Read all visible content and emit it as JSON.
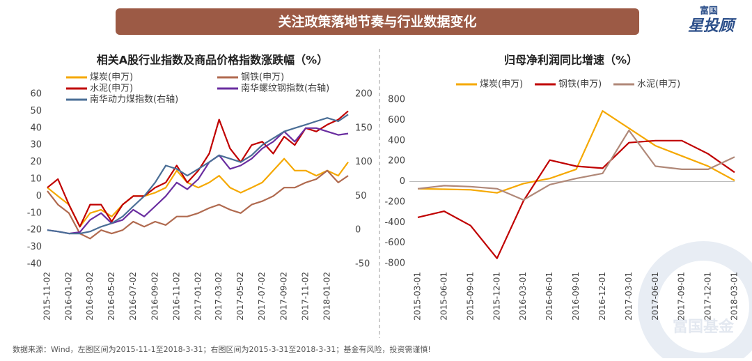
{
  "header": {
    "title": "关注政策落地节奏与行业数据变化",
    "logo_top": "富国",
    "logo_main": "星投顾"
  },
  "chart_data": [
    {
      "type": "line",
      "title": "相关A股行业指数及商品价格指数涨跌幅（%）",
      "x": [
        "2015-11-02",
        "2015-12-02",
        "2016-01-02",
        "2016-02-02",
        "2016-03-02",
        "2016-04-02",
        "2016-05-02",
        "2016-06-02",
        "2016-07-02",
        "2016-08-02",
        "2016-09-02",
        "2016-10-02",
        "2016-11-02",
        "2016-12-02",
        "2017-01-02",
        "2017-02-02",
        "2017-03-02",
        "2017-04-02",
        "2017-05-02",
        "2017-06-02",
        "2017-07-02",
        "2017-08-02",
        "2017-09-02",
        "2017-10-02",
        "2017-11-02",
        "2017-12-02",
        "2018-01-02",
        "2018-02-02",
        "2018-03-02"
      ],
      "xticks": [
        "2015-11-02",
        "2016-01-02",
        "2016-03-02",
        "2016-05-02",
        "2016-07-02",
        "2016-09-02",
        "2016-11-02",
        "2017-01-02",
        "2017-03-02",
        "2017-05-02",
        "2017-07-02",
        "2017-09-02",
        "2017-11-02",
        "2018-01-02"
      ],
      "ylim": [
        -40,
        60
      ],
      "yticks": [
        -40,
        -30,
        -20,
        -10,
        0,
        10,
        20,
        30,
        40,
        50,
        60
      ],
      "y2lim": [
        -50,
        200
      ],
      "y2ticks": [
        -50,
        0,
        50,
        100,
        150,
        200
      ],
      "series": [
        {
          "name": "煤炭(申万)",
          "color": "#f5a800",
          "values": [
            5,
            0,
            -5,
            -18,
            -10,
            -8,
            -12,
            -5,
            0,
            0,
            2,
            5,
            15,
            8,
            5,
            8,
            12,
            5,
            2,
            5,
            8,
            15,
            22,
            15,
            15,
            12,
            15,
            12,
            20
          ]
        },
        {
          "name": "钢铁(申万)",
          "color": "#b06a4f",
          "values": [
            3,
            -5,
            -10,
            -22,
            -25,
            -20,
            -22,
            -20,
            -15,
            -18,
            -15,
            -17,
            -12,
            -12,
            -10,
            -7,
            -5,
            -8,
            -10,
            -5,
            -3,
            0,
            5,
            5,
            8,
            10,
            15,
            8,
            12
          ]
        },
        {
          "name": "水泥(申万)",
          "color": "#c00000",
          "values": [
            5,
            10,
            -5,
            -18,
            -5,
            -5,
            -15,
            -5,
            0,
            0,
            5,
            8,
            18,
            8,
            15,
            25,
            45,
            28,
            20,
            30,
            32,
            25,
            35,
            30,
            40,
            38,
            42,
            45,
            50
          ]
        },
        {
          "name": "南华螺纹钢指数(右轴)",
          "color": "#6a2ea0",
          "axis": "y2",
          "values": [
            0,
            -2,
            -5,
            -3,
            15,
            25,
            10,
            15,
            30,
            20,
            35,
            50,
            70,
            60,
            75,
            100,
            110,
            90,
            95,
            105,
            120,
            130,
            145,
            130,
            150,
            150,
            145,
            140,
            142
          ]
        },
        {
          "name": "南华动力煤指数(右轴)",
          "color": "#4a6e96",
          "axis": "y2",
          "values": [
            0,
            -2,
            -5,
            -5,
            -2,
            5,
            10,
            20,
            35,
            50,
            70,
            95,
            90,
            80,
            90,
            100,
            110,
            105,
            100,
            110,
            125,
            135,
            145,
            150,
            155,
            160,
            165,
            160,
            170
          ]
        }
      ]
    },
    {
      "type": "line",
      "title": "归母净利润同比增速（%）",
      "categories": [
        "2015-03-01",
        "2015-06-01",
        "2015-09-01",
        "2015-12-01",
        "2016-03-01",
        "2016-06-01",
        "2016-09-01",
        "2016-12-01",
        "2017-03-01",
        "2017-06-01",
        "2017-09-01",
        "2017-12-01",
        "2018-03-01"
      ],
      "ylim": [
        -800,
        800
      ],
      "yticks": [
        -800,
        -600,
        -400,
        -200,
        0,
        200,
        400,
        600,
        800
      ],
      "series": [
        {
          "name": "煤炭(申万)",
          "color": "#f5a800",
          "values": [
            -70,
            -75,
            -80,
            -110,
            -20,
            30,
            120,
            690,
            520,
            350,
            250,
            150,
            10
          ]
        },
        {
          "name": "钢铁(申万)",
          "color": "#c00000",
          "values": [
            -350,
            -290,
            -430,
            -750,
            -190,
            210,
            150,
            130,
            380,
            400,
            400,
            270,
            90
          ]
        },
        {
          "name": "水泥(申万)",
          "color": "#b08878",
          "values": [
            -70,
            -40,
            -50,
            -70,
            -180,
            -30,
            30,
            80,
            500,
            150,
            120,
            120,
            240
          ]
        }
      ]
    }
  ],
  "footer": {
    "source": "数据来源：Wind，左图区间为2015-11-1至2018-3-31；右图区间为2015-3-31至2018-3-31；基金有风险，投资需谨慎!",
    "watermark": "富国基金"
  }
}
